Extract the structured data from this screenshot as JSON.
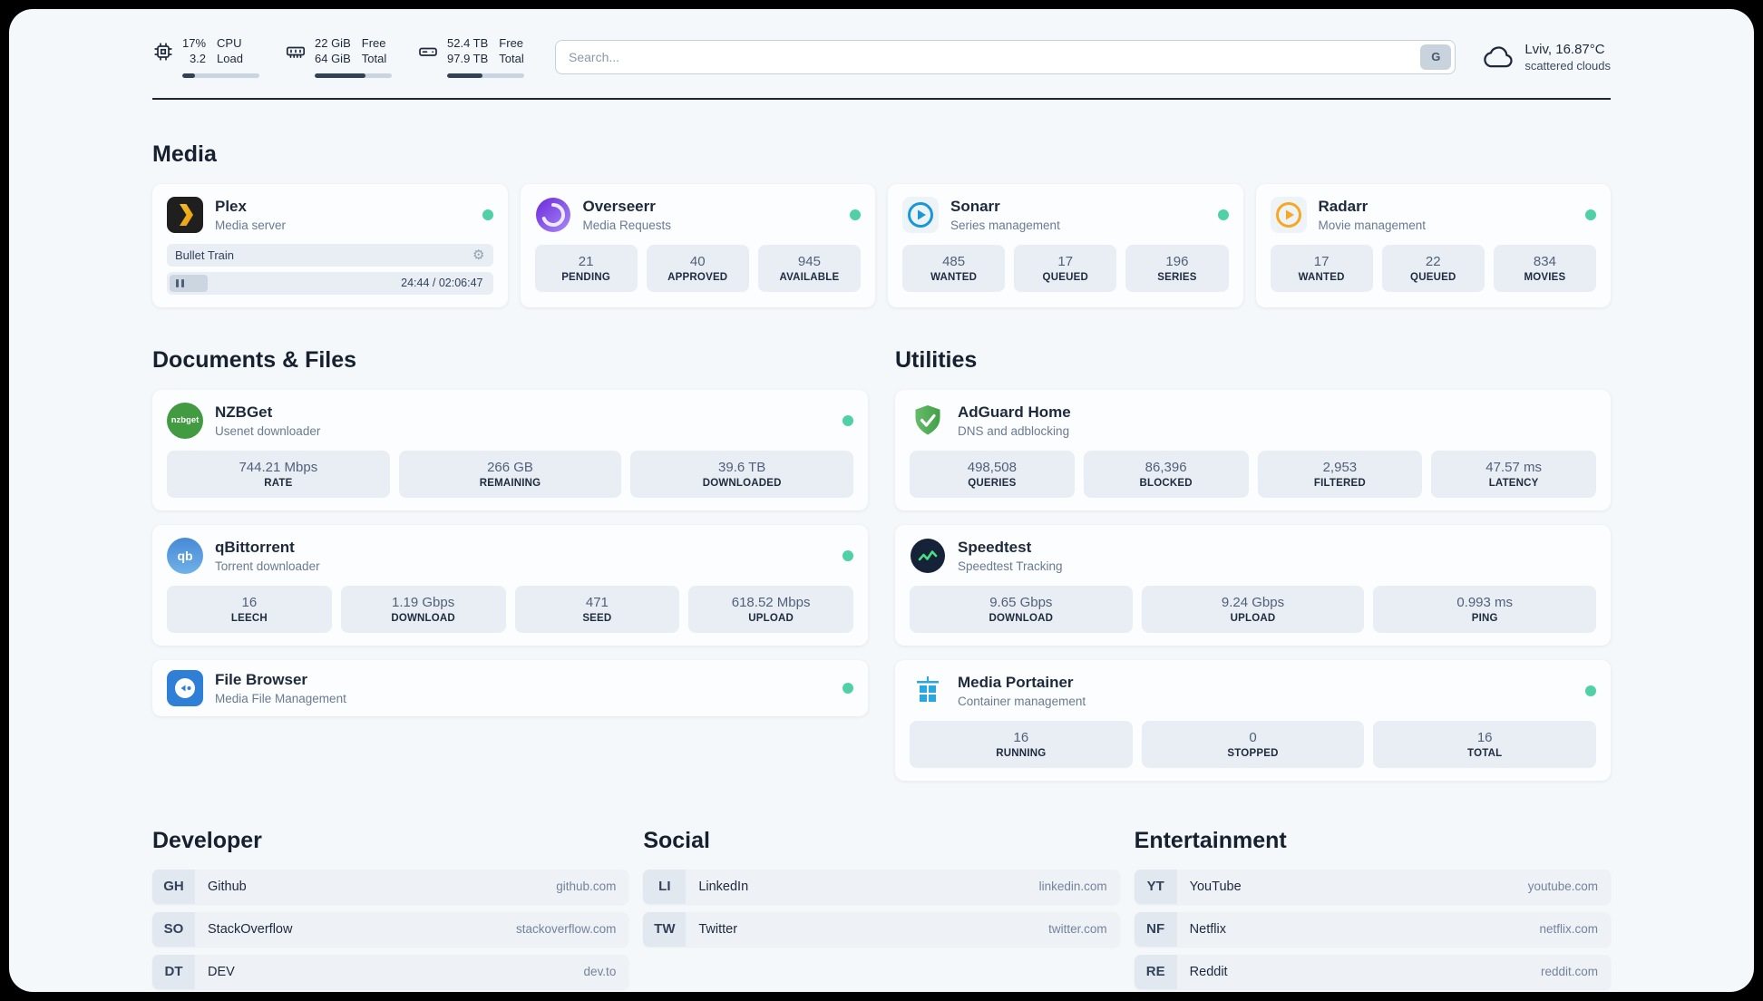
{
  "colors": {
    "status_online": "#4fd1a5",
    "panel_background": "#f5f8fb",
    "stat_box_background": "#e9eef4"
  },
  "topbar": {
    "cpu": {
      "value": "17%",
      "value2": "3.2",
      "label": "CPU",
      "label2": "Load",
      "progress_pct": 17
    },
    "memory": {
      "value": "22 GiB",
      "value2": "64 GiB",
      "label": "Free",
      "label2": "Total",
      "progress_pct": 66
    },
    "disk": {
      "value": "52.4 TB",
      "value2": "97.9 TB",
      "label": "Free",
      "label2": "Total",
      "progress_pct": 46
    },
    "search": {
      "placeholder": "Search...",
      "engine_button": "G"
    },
    "weather": {
      "location": "Lviv, 16.87°C",
      "condition": "scattered clouds"
    }
  },
  "sections": {
    "media": "Media",
    "documents": "Documents & Files",
    "utilities": "Utilities",
    "developer": "Developer",
    "social": "Social",
    "entertainment": "Entertainment"
  },
  "icons": {
    "gear": "⚙",
    "nzbget_label": "nzbget",
    "qbittorrent_label": "qb"
  },
  "apps": {
    "plex": {
      "name": "Plex",
      "desc": "Media server",
      "now_playing": "Bullet Train",
      "time": "24:44 / 02:06:47"
    },
    "overseerr": {
      "name": "Overseerr",
      "desc": "Media Requests",
      "stats": [
        {
          "value": "21",
          "label": "PENDING"
        },
        {
          "value": "40",
          "label": "APPROVED"
        },
        {
          "value": "945",
          "label": "AVAILABLE"
        }
      ]
    },
    "sonarr": {
      "name": "Sonarr",
      "desc": "Series management",
      "stats": [
        {
          "value": "485",
          "label": "WANTED"
        },
        {
          "value": "17",
          "label": "QUEUED"
        },
        {
          "value": "196",
          "label": "SERIES"
        }
      ]
    },
    "radarr": {
      "name": "Radarr",
      "desc": "Movie management",
      "stats": [
        {
          "value": "17",
          "label": "WANTED"
        },
        {
          "value": "22",
          "label": "QUEUED"
        },
        {
          "value": "834",
          "label": "MOVIES"
        }
      ]
    },
    "nzbget": {
      "name": "NZBGet",
      "desc": "Usenet downloader",
      "stats": [
        {
          "value": "744.21 Mbps",
          "label": "RATE"
        },
        {
          "value": "266 GB",
          "label": "REMAINING"
        },
        {
          "value": "39.6 TB",
          "label": "DOWNLOADED"
        }
      ]
    },
    "qbittorrent": {
      "name": "qBittorrent",
      "desc": "Torrent downloader",
      "stats": [
        {
          "value": "16",
          "label": "LEECH"
        },
        {
          "value": "1.19 Gbps",
          "label": "DOWNLOAD"
        },
        {
          "value": "471",
          "label": "SEED"
        },
        {
          "value": "618.52 Mbps",
          "label": "UPLOAD"
        }
      ]
    },
    "filebrowser": {
      "name": "File Browser",
      "desc": "Media File Management"
    },
    "adguard": {
      "name": "AdGuard Home",
      "desc": "DNS and adblocking",
      "stats": [
        {
          "value": "498,508",
          "label": "QUERIES"
        },
        {
          "value": "86,396",
          "label": "BLOCKED"
        },
        {
          "value": "2,953",
          "label": "FILTERED"
        },
        {
          "value": "47.57 ms",
          "label": "LATENCY"
        }
      ]
    },
    "speedtest": {
      "name": "Speedtest",
      "desc": "Speedtest Tracking",
      "stats": [
        {
          "value": "9.65 Gbps",
          "label": "DOWNLOAD"
        },
        {
          "value": "9.24 Gbps",
          "label": "UPLOAD"
        },
        {
          "value": "0.993 ms",
          "label": "PING"
        }
      ]
    },
    "portainer": {
      "name": "Media Portainer",
      "desc": "Container management",
      "stats": [
        {
          "value": "16",
          "label": "RUNNING"
        },
        {
          "value": "0",
          "label": "STOPPED"
        },
        {
          "value": "16",
          "label": "TOTAL"
        }
      ]
    }
  },
  "bookmarks": {
    "developer": [
      {
        "abbr": "GH",
        "name": "Github",
        "url": "github.com"
      },
      {
        "abbr": "SO",
        "name": "StackOverflow",
        "url": "stackoverflow.com"
      },
      {
        "abbr": "DT",
        "name": "DEV",
        "url": "dev.to"
      }
    ],
    "social": [
      {
        "abbr": "LI",
        "name": "LinkedIn",
        "url": "linkedin.com"
      },
      {
        "abbr": "TW",
        "name": "Twitter",
        "url": "twitter.com"
      }
    ],
    "entertainment": [
      {
        "abbr": "YT",
        "name": "YouTube",
        "url": "youtube.com"
      },
      {
        "abbr": "NF",
        "name": "Netflix",
        "url": "netflix.com"
      },
      {
        "abbr": "RE",
        "name": "Reddit",
        "url": "reddit.com"
      }
    ]
  }
}
